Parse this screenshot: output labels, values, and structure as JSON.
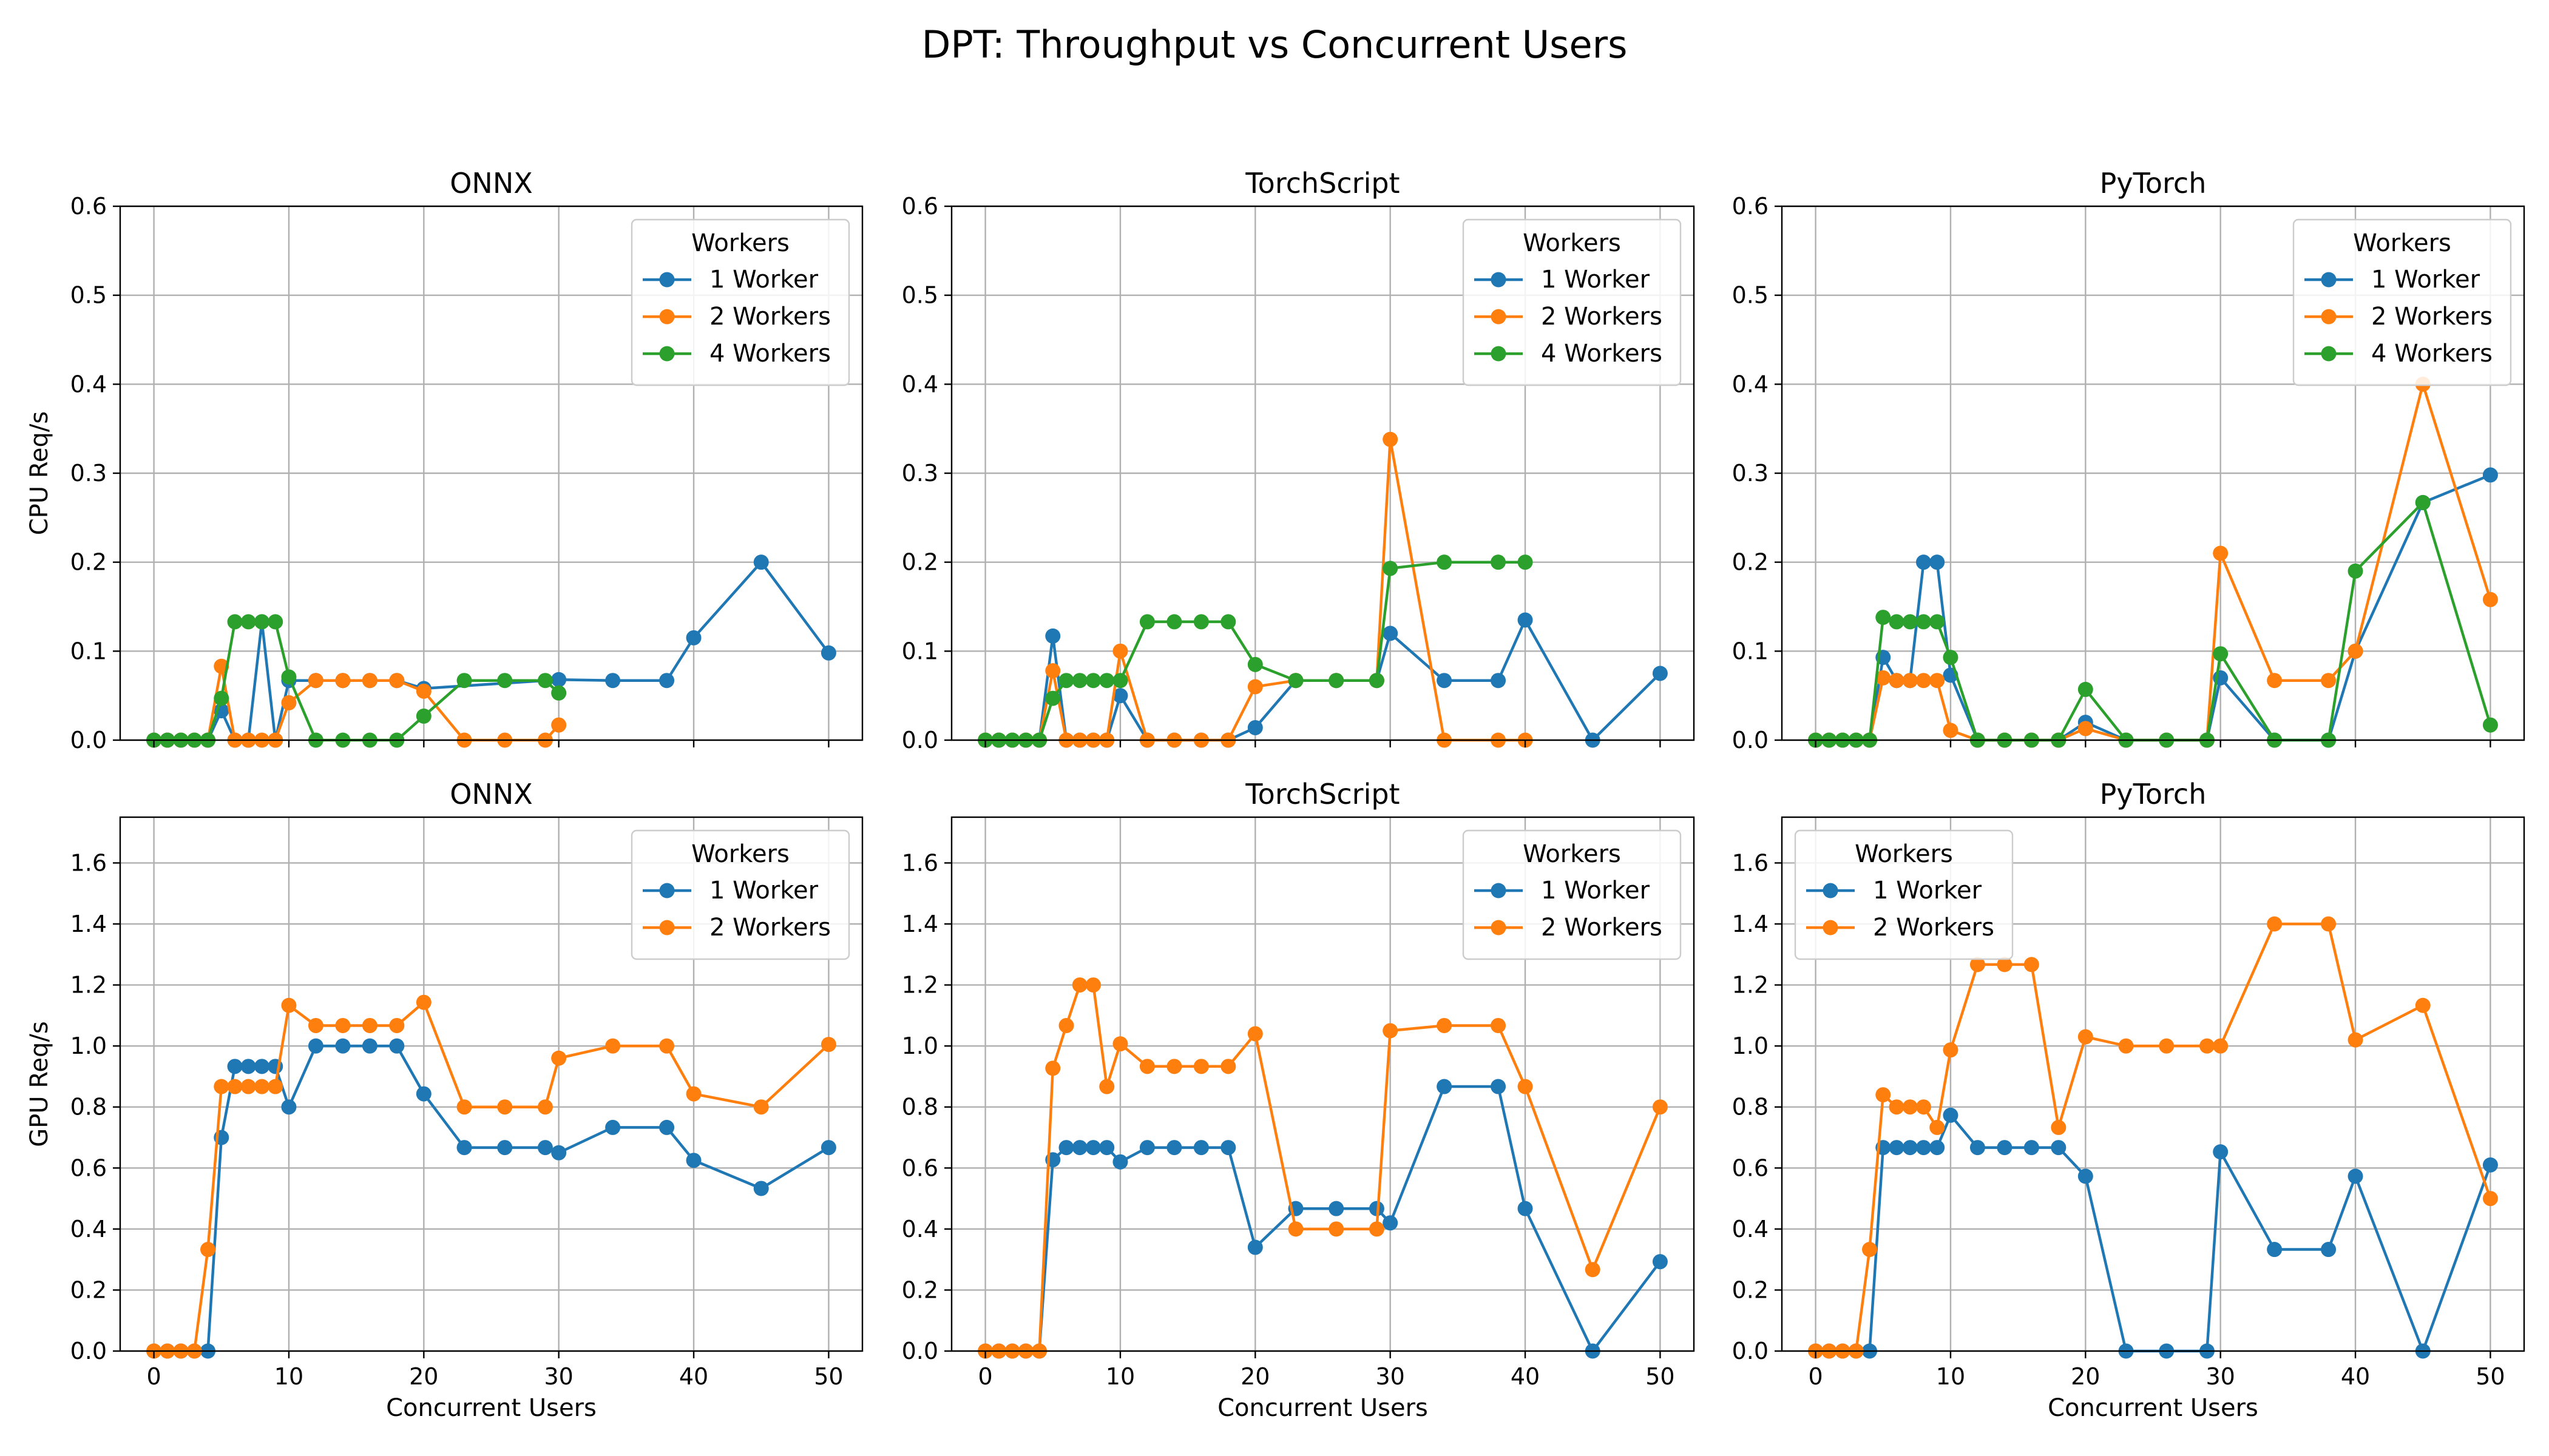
{
  "title": "DPT: Throughput vs Concurrent Users",
  "colors": {
    "1 Worker": "#1f77b4",
    "2 Workers": "#ff7f0e",
    "4 Workers": "#2ca02c"
  },
  "chart_data": [
    {
      "type": "line",
      "title": "ONNX",
      "xlabel": "",
      "ylabel": "CPU Req/s",
      "xlim": [
        -2.5,
        52.5
      ],
      "ylim": [
        0,
        0.6
      ],
      "xticks": [
        0,
        10,
        20,
        30,
        40,
        50
      ],
      "yticks": [
        0.0,
        0.1,
        0.2,
        0.3,
        0.4,
        0.5,
        0.6
      ],
      "show_xtick_labels": false,
      "grid": true,
      "legend_title": "Workers",
      "legend_position": "top-right",
      "series": [
        {
          "name": "1 Worker",
          "color": "#1f77b4",
          "x": [
            0,
            1,
            2,
            3,
            4,
            5,
            6,
            7,
            8,
            9,
            10,
            12,
            14,
            16,
            18,
            20,
            30,
            34,
            38,
            40,
            45,
            50
          ],
          "y": [
            0,
            0,
            0,
            0,
            0,
            0.033,
            0,
            0,
            0.133,
            0,
            0.067,
            0.067,
            0.067,
            0.067,
            0.067,
            0.058,
            0.068,
            0.067,
            0.067,
            0.115,
            0.2,
            0.098
          ]
        },
        {
          "name": "2 Workers",
          "color": "#ff7f0e",
          "x": [
            0,
            1,
            2,
            3,
            4,
            5,
            6,
            7,
            8,
            9,
            10,
            12,
            14,
            16,
            18,
            20,
            23,
            26,
            29,
            30
          ],
          "y": [
            0,
            0,
            0,
            0,
            0,
            0.083,
            0,
            0,
            0,
            0,
            0.042,
            0.067,
            0.067,
            0.067,
            0.067,
            0.055,
            0,
            0,
            0,
            0.017
          ]
        },
        {
          "name": "4 Workers",
          "color": "#2ca02c",
          "x": [
            0,
            1,
            2,
            3,
            4,
            5,
            6,
            7,
            8,
            9,
            10,
            12,
            14,
            16,
            18,
            20,
            23,
            26,
            29,
            30
          ],
          "y": [
            0,
            0,
            0,
            0,
            0,
            0.047,
            0.133,
            0.133,
            0.133,
            0.133,
            0.071,
            0,
            0,
            0,
            0,
            0.027,
            0.067,
            0.067,
            0.067,
            0.053
          ]
        }
      ]
    },
    {
      "type": "line",
      "title": "TorchScript",
      "xlabel": "",
      "ylabel": "",
      "xlim": [
        -2.5,
        52.5
      ],
      "ylim": [
        0,
        0.6
      ],
      "xticks": [
        0,
        10,
        20,
        30,
        40,
        50
      ],
      "yticks": [
        0.0,
        0.1,
        0.2,
        0.3,
        0.4,
        0.5,
        0.6
      ],
      "show_xtick_labels": false,
      "grid": true,
      "legend_title": "Workers",
      "legend_position": "top-right",
      "series": [
        {
          "name": "1 Worker",
          "color": "#1f77b4",
          "x": [
            0,
            1,
            2,
            3,
            4,
            5,
            6,
            7,
            8,
            9,
            10,
            12,
            14,
            16,
            18,
            20,
            23,
            26,
            29,
            30,
            34,
            38,
            40,
            45,
            50
          ],
          "y": [
            0,
            0,
            0,
            0,
            0,
            0.117,
            0,
            0,
            0,
            0,
            0.05,
            0,
            0,
            0,
            0,
            0.014,
            0.067,
            0.067,
            0.067,
            0.12,
            0.067,
            0.067,
            0.135,
            0,
            0.075
          ]
        },
        {
          "name": "2 Workers",
          "color": "#ff7f0e",
          "x": [
            0,
            1,
            2,
            3,
            4,
            5,
            6,
            7,
            8,
            9,
            10,
            12,
            14,
            16,
            18,
            20,
            23,
            26,
            29,
            30,
            34,
            38,
            40
          ],
          "y": [
            0,
            0,
            0,
            0,
            0,
            0.078,
            0,
            0,
            0,
            0,
            0.1,
            0,
            0,
            0,
            0,
            0.06,
            0.067,
            0.067,
            0.067,
            0.338,
            0,
            0,
            0
          ]
        },
        {
          "name": "4 Workers",
          "color": "#2ca02c",
          "x": [
            0,
            1,
            2,
            3,
            4,
            5,
            6,
            7,
            8,
            9,
            10,
            12,
            14,
            16,
            18,
            20,
            23,
            26,
            29,
            30,
            34,
            38,
            40
          ],
          "y": [
            0,
            0,
            0,
            0,
            0,
            0.047,
            0.067,
            0.067,
            0.067,
            0.067,
            0.067,
            0.133,
            0.133,
            0.133,
            0.133,
            0.085,
            0.067,
            0.067,
            0.067,
            0.193,
            0.2,
            0.2,
            0.2
          ]
        }
      ]
    },
    {
      "type": "line",
      "title": "PyTorch",
      "xlabel": "",
      "ylabel": "",
      "xlim": [
        -2.5,
        52.5
      ],
      "ylim": [
        0,
        0.6
      ],
      "xticks": [
        0,
        10,
        20,
        30,
        40,
        50
      ],
      "yticks": [
        0.0,
        0.1,
        0.2,
        0.3,
        0.4,
        0.5,
        0.6
      ],
      "show_xtick_labels": false,
      "grid": true,
      "legend_title": "Workers",
      "legend_position": "top-right",
      "series": [
        {
          "name": "1 Worker",
          "color": "#1f77b4",
          "x": [
            0,
            1,
            2,
            3,
            4,
            5,
            6,
            7,
            8,
            9,
            10,
            12,
            14,
            16,
            18,
            20,
            23,
            26,
            29,
            30,
            34,
            38,
            40,
            45,
            50
          ],
          "y": [
            0,
            0,
            0,
            0,
            0,
            0.093,
            0.067,
            0.067,
            0.2,
            0.2,
            0.073,
            0,
            0,
            0,
            0,
            0.02,
            0,
            0,
            0,
            0.07,
            0,
            0,
            0.1,
            0.267,
            0.298
          ]
        },
        {
          "name": "2 Workers",
          "color": "#ff7f0e",
          "x": [
            0,
            1,
            2,
            3,
            4,
            5,
            6,
            7,
            8,
            9,
            10,
            12,
            14,
            16,
            18,
            20,
            23,
            26,
            29,
            30,
            34,
            38,
            40,
            45,
            50
          ],
          "y": [
            0,
            0,
            0,
            0,
            0,
            0.07,
            0.067,
            0.067,
            0.067,
            0.067,
            0.011,
            0,
            0,
            0,
            0,
            0.013,
            0,
            0,
            0,
            0.21,
            0.067,
            0.067,
            0.1,
            0.4,
            0.158
          ]
        },
        {
          "name": "4 Workers",
          "color": "#2ca02c",
          "x": [
            0,
            1,
            2,
            3,
            4,
            5,
            6,
            7,
            8,
            9,
            10,
            12,
            14,
            16,
            18,
            20,
            23,
            26,
            29,
            30,
            34,
            38,
            40,
            45,
            50
          ],
          "y": [
            0,
            0,
            0,
            0,
            0,
            0.138,
            0.133,
            0.133,
            0.133,
            0.133,
            0.093,
            0,
            0,
            0,
            0,
            0.057,
            0,
            0,
            0,
            0.097,
            0,
            0,
            0.19,
            0.267,
            0.017
          ]
        }
      ]
    },
    {
      "type": "line",
      "title": "ONNX",
      "xlabel": "Concurrent Users",
      "ylabel": "GPU Req/s",
      "xlim": [
        -2.5,
        52.5
      ],
      "ylim": [
        0,
        1.75
      ],
      "xticks": [
        0,
        10,
        20,
        30,
        40,
        50
      ],
      "yticks": [
        0.0,
        0.2,
        0.4,
        0.6,
        0.8,
        1.0,
        1.2,
        1.4,
        1.6
      ],
      "show_xtick_labels": true,
      "grid": true,
      "legend_title": "Workers",
      "legend_position": "top-right",
      "series": [
        {
          "name": "1 Worker",
          "color": "#1f77b4",
          "x": [
            0,
            1,
            2,
            3,
            4,
            5,
            6,
            7,
            8,
            9,
            10,
            12,
            14,
            16,
            18,
            20,
            23,
            26,
            29,
            30,
            34,
            38,
            40,
            45,
            50
          ],
          "y": [
            0,
            0,
            0,
            0,
            0,
            0.7,
            0.933,
            0.933,
            0.933,
            0.933,
            0.8,
            1.0,
            1.0,
            1.0,
            1.0,
            0.843,
            0.667,
            0.667,
            0.667,
            0.65,
            0.733,
            0.733,
            0.625,
            0.533,
            0.667
          ]
        },
        {
          "name": "2 Workers",
          "color": "#ff7f0e",
          "x": [
            0,
            1,
            2,
            3,
            4,
            5,
            6,
            7,
            8,
            9,
            10,
            12,
            14,
            16,
            18,
            20,
            23,
            26,
            29,
            30,
            34,
            38,
            40,
            45,
            50
          ],
          "y": [
            0,
            0,
            0,
            0,
            0.333,
            0.867,
            0.867,
            0.867,
            0.867,
            0.867,
            1.133,
            1.067,
            1.067,
            1.067,
            1.067,
            1.143,
            0.8,
            0.8,
            0.8,
            0.96,
            1.0,
            1.0,
            0.843,
            0.8,
            1.005
          ]
        }
      ]
    },
    {
      "type": "line",
      "title": "TorchScript",
      "xlabel": "Concurrent Users",
      "ylabel": "",
      "xlim": [
        -2.5,
        52.5
      ],
      "ylim": [
        0,
        1.75
      ],
      "xticks": [
        0,
        10,
        20,
        30,
        40,
        50
      ],
      "yticks": [
        0.0,
        0.2,
        0.4,
        0.6,
        0.8,
        1.0,
        1.2,
        1.4,
        1.6
      ],
      "show_xtick_labels": true,
      "grid": true,
      "legend_title": "Workers",
      "legend_position": "top-right",
      "series": [
        {
          "name": "1 Worker",
          "color": "#1f77b4",
          "x": [
            0,
            1,
            2,
            3,
            4,
            5,
            6,
            7,
            8,
            9,
            10,
            12,
            14,
            16,
            18,
            20,
            23,
            26,
            29,
            30,
            34,
            38,
            40,
            45,
            50
          ],
          "y": [
            0,
            0,
            0,
            0,
            0,
            0.627,
            0.667,
            0.667,
            0.667,
            0.667,
            0.62,
            0.667,
            0.667,
            0.667,
            0.667,
            0.34,
            0.467,
            0.467,
            0.467,
            0.42,
            0.867,
            0.867,
            0.467,
            0,
            0.293
          ]
        },
        {
          "name": "2 Workers",
          "color": "#ff7f0e",
          "x": [
            0,
            1,
            2,
            3,
            4,
            5,
            6,
            7,
            8,
            9,
            10,
            12,
            14,
            16,
            18,
            20,
            23,
            26,
            29,
            30,
            34,
            38,
            40,
            45,
            50
          ],
          "y": [
            0,
            0,
            0,
            0,
            0,
            0.927,
            1.067,
            1.2,
            1.2,
            0.867,
            1.007,
            0.933,
            0.933,
            0.933,
            0.933,
            1.04,
            0.4,
            0.4,
            0.4,
            1.05,
            1.067,
            1.067,
            0.867,
            0.267,
            0.8
          ]
        }
      ]
    },
    {
      "type": "line",
      "title": "PyTorch",
      "xlabel": "Concurrent Users",
      "ylabel": "",
      "xlim": [
        -2.5,
        52.5
      ],
      "ylim": [
        0,
        1.75
      ],
      "xticks": [
        0,
        10,
        20,
        30,
        40,
        50
      ],
      "yticks": [
        0.0,
        0.2,
        0.4,
        0.6,
        0.8,
        1.0,
        1.2,
        1.4,
        1.6
      ],
      "show_xtick_labels": true,
      "grid": true,
      "legend_title": "Workers",
      "legend_position": "top-left",
      "series": [
        {
          "name": "1 Worker",
          "color": "#1f77b4",
          "x": [
            0,
            1,
            2,
            3,
            4,
            5,
            6,
            7,
            8,
            9,
            10,
            12,
            14,
            16,
            18,
            20,
            23,
            26,
            29,
            30,
            34,
            38,
            40,
            45,
            50
          ],
          "y": [
            0,
            0,
            0,
            0,
            0,
            0.667,
            0.667,
            0.667,
            0.667,
            0.667,
            0.773,
            0.667,
            0.667,
            0.667,
            0.667,
            0.573,
            0,
            0,
            0,
            0.653,
            0.333,
            0.333,
            0.573,
            0,
            0.61
          ]
        },
        {
          "name": "2 Workers",
          "color": "#ff7f0e",
          "x": [
            0,
            1,
            2,
            3,
            4,
            5,
            6,
            7,
            8,
            9,
            10,
            12,
            14,
            16,
            18,
            20,
            23,
            26,
            29,
            30,
            34,
            38,
            40,
            45,
            50
          ],
          "y": [
            0,
            0,
            0,
            0,
            0.333,
            0.84,
            0.8,
            0.8,
            0.8,
            0.733,
            0.987,
            1.267,
            1.267,
            1.267,
            0.733,
            1.03,
            1.0,
            1.0,
            1.0,
            1.0,
            1.4,
            1.4,
            1.02,
            1.133,
            0.5
          ]
        }
      ]
    }
  ]
}
